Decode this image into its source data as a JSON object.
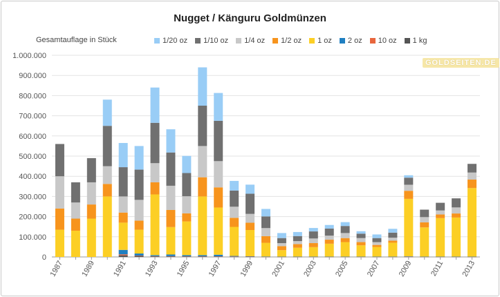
{
  "chart_data": {
    "type": "bar",
    "stacked": true,
    "title": "Nugget / Känguru Goldmünzen",
    "ylabel": "Gesamtauflage in Stück",
    "xlabel": "",
    "ylim": [
      0,
      1000000
    ],
    "yticks": [
      "0",
      "100.000",
      "200.000",
      "300.000",
      "400.000",
      "500.000",
      "600.000",
      "700.000",
      "800.000",
      "900.000",
      "1.000.000"
    ],
    "ytick_values": [
      0,
      100000,
      200000,
      300000,
      400000,
      500000,
      600000,
      700000,
      800000,
      900000,
      1000000
    ],
    "categories": [
      "1987",
      "1988",
      "1989",
      "1990",
      "1991",
      "1992",
      "1993",
      "1994",
      "1995",
      "1996",
      "1997",
      "1998",
      "1999",
      "2000",
      "2001",
      "2002",
      "2003",
      "2004",
      "2005",
      "2006",
      "2007",
      "2008",
      "2009",
      "2010",
      "2011",
      "2012",
      "2013"
    ],
    "series": [
      {
        "name": "1 kg",
        "color": "#555555",
        "values": [
          0,
          0,
          0,
          0,
          8000,
          5000,
          3000,
          3000,
          2000,
          2000,
          2000,
          1000,
          1000,
          500,
          500,
          500,
          500,
          500,
          500,
          500,
          500,
          500,
          500,
          500,
          500,
          500,
          500
        ]
      },
      {
        "name": "10 oz",
        "color": "#e8663d",
        "values": [
          0,
          0,
          0,
          0,
          5000,
          2000,
          1000,
          1000,
          1000,
          1000,
          1000,
          1000,
          500,
          500,
          500,
          500,
          500,
          500,
          500,
          500,
          500,
          500,
          500,
          500,
          500,
          500,
          500
        ]
      },
      {
        "name": "2 oz",
        "color": "#1f7fc1",
        "values": [
          0,
          0,
          0,
          0,
          22000,
          10000,
          5000,
          8000,
          6000,
          6000,
          8000,
          3000,
          2000,
          1000,
          500,
          500,
          500,
          500,
          500,
          500,
          500,
          500,
          2000,
          500,
          500,
          500,
          500
        ]
      },
      {
        "name": "1 oz",
        "color": "#fccf25",
        "values": [
          135000,
          130000,
          190000,
          300000,
          135000,
          118000,
          301000,
          136000,
          167000,
          291000,
          234000,
          144000,
          130000,
          68000,
          32000,
          44000,
          47000,
          64000,
          72000,
          56000,
          48000,
          69000,
          285000,
          145000,
          191000,
          194000,
          340000
        ]
      },
      {
        "name": "1/2 oz",
        "color": "#f7941d",
        "values": [
          105000,
          60000,
          70000,
          62000,
          50000,
          45000,
          60000,
          85000,
          40000,
          95000,
          100000,
          45000,
          36000,
          33000,
          20000,
          18000,
          20000,
          20000,
          20000,
          16000,
          10000,
          10000,
          40000,
          25000,
          18000,
          20000,
          42000
        ]
      },
      {
        "name": "1/4 oz",
        "color": "#c8c8c8",
        "values": [
          160000,
          80000,
          110000,
          88000,
          80000,
          103000,
          95000,
          120000,
          85000,
          155000,
          130000,
          55000,
          44000,
          40000,
          15000,
          15000,
          23000,
          20000,
          25000,
          20000,
          14000,
          15000,
          30000,
          26000,
          20000,
          30000,
          35000
        ]
      },
      {
        "name": "1/10 oz",
        "color": "#707070",
        "values": [
          160000,
          100000,
          120000,
          200000,
          145000,
          150000,
          200000,
          165000,
          115000,
          200000,
          200000,
          80000,
          100000,
          58000,
          25000,
          25000,
          35000,
          35000,
          35000,
          22000,
          20000,
          25000,
          35000,
          37000,
          38000,
          45000,
          43000
        ]
      },
      {
        "name": "1/20 oz",
        "color": "#99cdf6",
        "values": [
          0,
          0,
          0,
          130000,
          120000,
          117000,
          175000,
          115000,
          85000,
          190000,
          138000,
          48000,
          45000,
          37000,
          25000,
          20000,
          17000,
          18000,
          19000,
          12000,
          18000,
          19000,
          12000,
          0,
          0,
          0,
          0
        ]
      }
    ],
    "legend_order": [
      "1/20 oz",
      "1/10 oz",
      "1/4 oz",
      "1/2 oz",
      "1 oz",
      "2 oz",
      "10 oz",
      "1 kg"
    ],
    "grid": true,
    "legend_position": "top"
  },
  "watermark": {
    "text": "GOLDSEITEN.DE"
  }
}
